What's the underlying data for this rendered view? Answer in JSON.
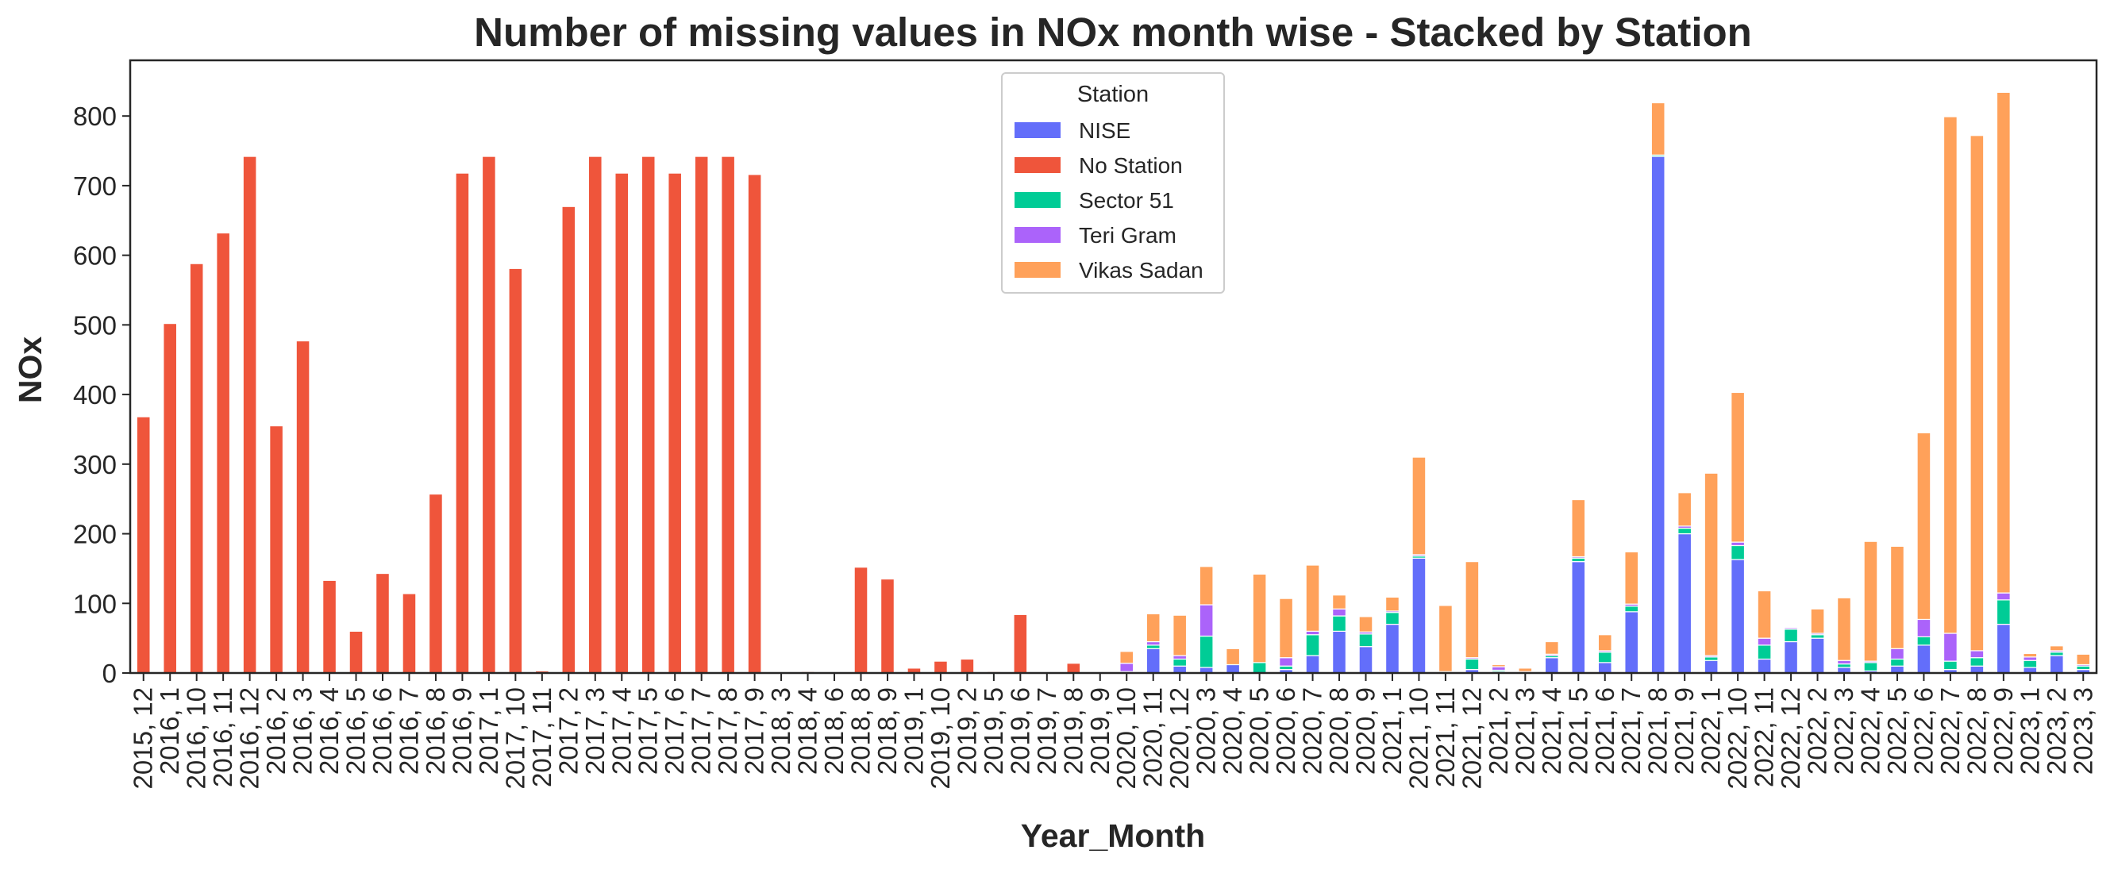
{
  "chart_data": {
    "type": "bar",
    "stacked": true,
    "title": "Number of missing values in NOx month wise - Stacked by Station",
    "xlabel": "Year_Month",
    "ylabel": "NOx",
    "ylim": [
      0,
      880
    ],
    "yticks": [
      0,
      100,
      200,
      300,
      400,
      500,
      600,
      700,
      800
    ],
    "grid": false,
    "legend": {
      "title": "Station",
      "position": "top-center"
    },
    "categories": [
      "2015, 12",
      "2016, 1",
      "2016, 10",
      "2016, 11",
      "2016, 12",
      "2016, 2",
      "2016, 3",
      "2016, 4",
      "2016, 5",
      "2016, 6",
      "2016, 7",
      "2016, 8",
      "2016, 9",
      "2017, 1",
      "2017, 10",
      "2017, 11",
      "2017, 2",
      "2017, 3",
      "2017, 4",
      "2017, 5",
      "2017, 6",
      "2017, 7",
      "2017, 8",
      "2017, 9",
      "2018, 3",
      "2018, 4",
      "2018, 6",
      "2018, 8",
      "2018, 9",
      "2019, 1",
      "2019, 10",
      "2019, 2",
      "2019, 5",
      "2019, 6",
      "2019, 7",
      "2019, 8",
      "2019, 9",
      "2020, 10",
      "2020, 11",
      "2020, 12",
      "2020, 3",
      "2020, 4",
      "2020, 5",
      "2020, 6",
      "2020, 7",
      "2020, 8",
      "2020, 9",
      "2021, 1",
      "2021, 10",
      "2021, 11",
      "2021, 12",
      "2021, 2",
      "2021, 3",
      "2021, 4",
      "2021, 5",
      "2021, 6",
      "2021, 7",
      "2021, 8",
      "2021, 9",
      "2022, 1",
      "2022, 10",
      "2022, 11",
      "2022, 12",
      "2022, 2",
      "2022, 3",
      "2022, 4",
      "2022, 5",
      "2022, 6",
      "2022, 7",
      "2022, 8",
      "2022, 9",
      "2023, 1",
      "2023, 2",
      "2023, 3"
    ],
    "series": [
      {
        "name": "NISE",
        "color": "#636efa",
        "values": [
          0,
          0,
          0,
          0,
          0,
          0,
          0,
          0,
          0,
          0,
          0,
          0,
          0,
          0,
          0,
          0,
          0,
          0,
          0,
          0,
          0,
          0,
          0,
          0,
          0,
          0,
          0,
          0,
          0,
          0,
          0,
          0,
          0,
          0,
          0,
          0,
          0,
          0,
          35,
          10,
          8,
          12,
          0,
          5,
          25,
          60,
          38,
          70,
          165,
          0,
          5,
          2,
          0,
          22,
          160,
          15,
          88,
          742,
          200,
          18,
          163,
          20,
          45,
          50,
          8,
          3,
          10,
          40,
          5,
          10,
          70,
          8,
          25,
          5
        ]
      },
      {
        "name": "No Station",
        "color": "#ef553b",
        "values": [
          368,
          502,
          588,
          632,
          742,
          355,
          477,
          133,
          60,
          143,
          114,
          257,
          718,
          742,
          581,
          3,
          670,
          742,
          718,
          742,
          718,
          742,
          742,
          716,
          0,
          2,
          0,
          152,
          135,
          7,
          17,
          20,
          2,
          84,
          0,
          14,
          0,
          0,
          0,
          0,
          0,
          0,
          0,
          0,
          0,
          0,
          0,
          0,
          0,
          0,
          0,
          0,
          0,
          0,
          0,
          0,
          0,
          0,
          0,
          0,
          0,
          0,
          0,
          0,
          0,
          0,
          0,
          0,
          0,
          0,
          0,
          0,
          0,
          0
        ]
      },
      {
        "name": "Sector 51",
        "color": "#00cc96",
        "values": [
          0,
          0,
          0,
          0,
          0,
          0,
          0,
          0,
          0,
          0,
          0,
          0,
          0,
          0,
          0,
          0,
          0,
          0,
          0,
          0,
          0,
          0,
          0,
          0,
          0,
          0,
          0,
          0,
          0,
          0,
          0,
          0,
          0,
          0,
          0,
          0,
          0,
          2,
          5,
          10,
          45,
          0,
          15,
          5,
          30,
          22,
          18,
          17,
          3,
          2,
          15,
          2,
          0,
          3,
          5,
          15,
          8,
          2,
          8,
          5,
          20,
          20,
          18,
          5,
          5,
          12,
          10,
          12,
          12,
          12,
          35,
          10,
          5,
          5
        ]
      },
      {
        "name": "Teri Gram",
        "color": "#ab63fa",
        "values": [
          0,
          0,
          0,
          0,
          0,
          0,
          0,
          0,
          0,
          0,
          0,
          0,
          0,
          0,
          0,
          0,
          0,
          0,
          0,
          0,
          0,
          0,
          0,
          0,
          0,
          0,
          0,
          0,
          0,
          0,
          0,
          0,
          0,
          0,
          0,
          0,
          0,
          12,
          5,
          5,
          45,
          0,
          0,
          12,
          5,
          10,
          3,
          2,
          2,
          0,
          2,
          5,
          2,
          2,
          2,
          2,
          3,
          0,
          3,
          2,
          5,
          10,
          2,
          2,
          5,
          2,
          15,
          25,
          40,
          10,
          10,
          5,
          2,
          2
        ]
      },
      {
        "name": "Vikas Sadan",
        "color": "#ffa15a",
        "values": [
          0,
          0,
          0,
          0,
          0,
          0,
          0,
          0,
          0,
          0,
          0,
          0,
          0,
          0,
          0,
          0,
          0,
          0,
          0,
          0,
          0,
          0,
          0,
          0,
          0,
          0,
          0,
          0,
          0,
          0,
          0,
          0,
          0,
          0,
          0,
          0,
          0,
          17,
          40,
          58,
          55,
          23,
          127,
          85,
          95,
          20,
          22,
          20,
          140,
          95,
          138,
          3,
          5,
          18,
          82,
          23,
          75,
          75,
          48,
          262,
          215,
          68,
          0,
          35,
          90,
          172,
          147,
          268,
          742,
          740,
          719,
          5,
          7,
          15
        ]
      }
    ]
  }
}
